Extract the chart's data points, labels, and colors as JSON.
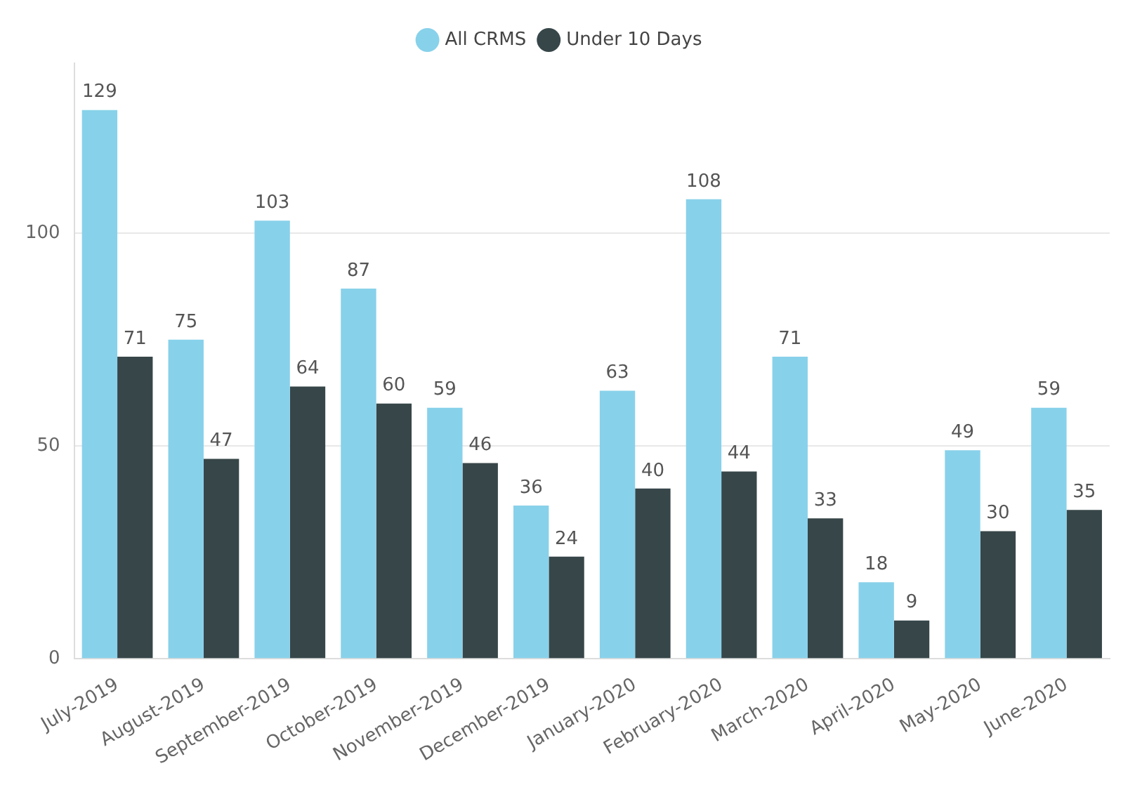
{
  "chart_data": {
    "type": "bar",
    "categories": [
      "July-2019",
      "August-2019",
      "September-2019",
      "October-2019",
      "November-2019",
      "December-2019",
      "January-2020",
      "February-2020",
      "March-2020",
      "April-2020",
      "May-2020",
      "June-2020"
    ],
    "series": [
      {
        "name": "All CRMS",
        "color": "#88d1ea",
        "values": [
          129,
          75,
          103,
          87,
          59,
          36,
          63,
          108,
          71,
          18,
          49,
          59
        ]
      },
      {
        "name": "Under 10 Days",
        "color": "#374649",
        "values": [
          71,
          47,
          64,
          60,
          46,
          24,
          40,
          44,
          33,
          9,
          30,
          35
        ]
      }
    ],
    "ylim": [
      0,
      140
    ],
    "yticks": [
      0,
      50,
      100
    ],
    "grid": "y",
    "legend": "top",
    "data_labels": true
  }
}
